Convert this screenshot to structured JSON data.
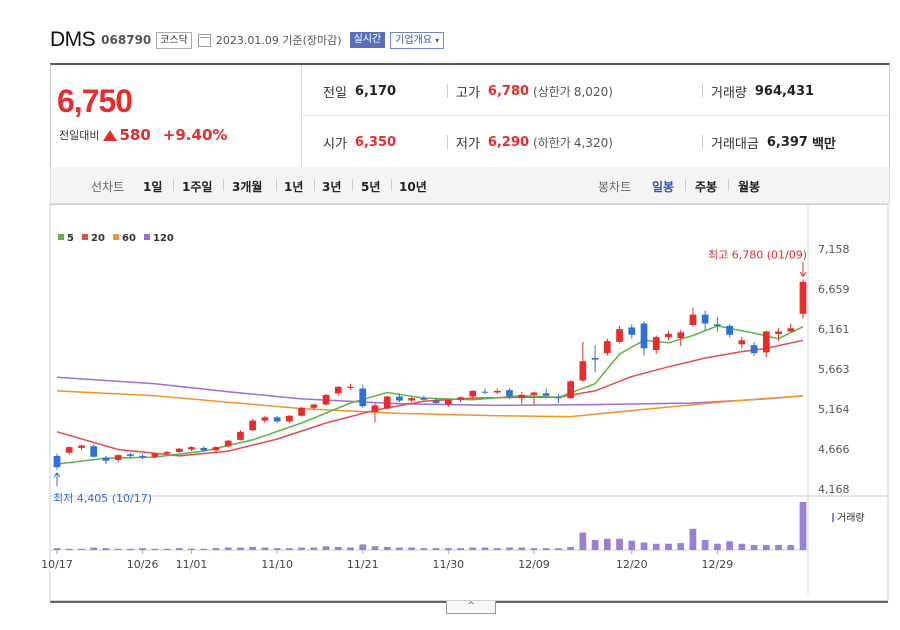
{
  "header": {
    "name": "DMS",
    "code": "068790",
    "market": "코스닥",
    "date": "2023.01.09 기준(장마감)",
    "realtime": "실시간",
    "company_info": "기업개요"
  },
  "quote": {
    "price": "6,750",
    "change_label": "전일대비",
    "change": "580",
    "change_pct": "+9.40%",
    "prev_label": "전일",
    "prev": "6,170",
    "open_label": "시가",
    "open": "6,350",
    "high_label": "고가",
    "high": "6,780",
    "upper_limit_label": "(상한가",
    "upper_limit": "8,020)",
    "low_label": "저가",
    "low": "6,290",
    "lower_limit_label": "(하한가",
    "lower_limit": "4,320)",
    "volume_label": "거래량",
    "volume": "964,431",
    "amount_label": "거래대금",
    "amount": "6,397",
    "amount_unit": "백만"
  },
  "tabs": {
    "line_label": "선차트",
    "line_periods": [
      "1일",
      "1주일",
      "3개월",
      "1년",
      "3년",
      "5년",
      "10년"
    ],
    "candle_label": "봉차트",
    "candle_periods": [
      "일봉",
      "주봉",
      "월봉"
    ]
  },
  "chart_data": {
    "type": "candlestick",
    "legend": [
      "5",
      "20",
      "60",
      "120"
    ],
    "ma_colors": {
      "5": "#59b646",
      "20": "#e84a4a",
      "60": "#f2922a",
      "120": "#9b6fd2"
    },
    "up_color": "#e62c2c",
    "down_color": "#2f6fd6",
    "y_ticks": [
      7158,
      6659,
      6161,
      5663,
      5164,
      4666,
      4168
    ],
    "y_tick_labels": [
      "7,158",
      "6,659",
      "6,161",
      "5,663",
      "5,164",
      "4,666",
      "4,168"
    ],
    "ylim": [
      4168,
      7158
    ],
    "x_labels": [
      "10/17",
      "10/26",
      "11/01",
      "11/10",
      "11/21",
      "11/30",
      "12/09",
      "12/20",
      "12/29"
    ],
    "x_label_index": [
      0,
      7,
      11,
      18,
      25,
      32,
      39,
      47,
      54
    ],
    "high_annotation": "최고 6,780 (01/09)",
    "low_annotation": "최저 4,405 (10/17)",
    "volume_legend": "거래량",
    "candles": [
      [
        4580,
        4610,
        4405,
        4440
      ],
      [
        4620,
        4700,
        4600,
        4690
      ],
      [
        4680,
        4720,
        4650,
        4710
      ],
      [
        4700,
        4720,
        4560,
        4570
      ],
      [
        4560,
        4580,
        4480,
        4520
      ],
      [
        4530,
        4600,
        4500,
        4590
      ],
      [
        4600,
        4620,
        4560,
        4580
      ],
      [
        4580,
        4600,
        4540,
        4570
      ],
      [
        4570,
        4620,
        4550,
        4610
      ],
      [
        4610,
        4640,
        4590,
        4630
      ],
      [
        4630,
        4680,
        4620,
        4670
      ],
      [
        4660,
        4700,
        4640,
        4690
      ],
      [
        4680,
        4700,
        4640,
        4650
      ],
      [
        4650,
        4700,
        4620,
        4690
      ],
      [
        4700,
        4780,
        4690,
        4770
      ],
      [
        4780,
        4900,
        4770,
        4880
      ],
      [
        4900,
        5040,
        4890,
        5020
      ],
      [
        5020,
        5080,
        4990,
        5060
      ],
      [
        5060,
        5080,
        4990,
        5010
      ],
      [
        5010,
        5090,
        4990,
        5080
      ],
      [
        5080,
        5190,
        5070,
        5180
      ],
      [
        5180,
        5230,
        5150,
        5220
      ],
      [
        5220,
        5350,
        5210,
        5340
      ],
      [
        5360,
        5450,
        5330,
        5440
      ],
      [
        5430,
        5480,
        5400,
        5440
      ],
      [
        5420,
        5460,
        5180,
        5200
      ],
      [
        5130,
        5240,
        5000,
        5210
      ],
      [
        5170,
        5330,
        5160,
        5320
      ],
      [
        5320,
        5360,
        5250,
        5270
      ],
      [
        5270,
        5320,
        5250,
        5300
      ],
      [
        5300,
        5330,
        5270,
        5280
      ],
      [
        5270,
        5300,
        5230,
        5240
      ],
      [
        5220,
        5290,
        5190,
        5280
      ],
      [
        5280,
        5320,
        5250,
        5310
      ],
      [
        5320,
        5400,
        5300,
        5390
      ],
      [
        5380,
        5420,
        5350,
        5370
      ],
      [
        5370,
        5420,
        5350,
        5390
      ],
      [
        5400,
        5420,
        5290,
        5320
      ],
      [
        5300,
        5380,
        5230,
        5340
      ],
      [
        5340,
        5380,
        5220,
        5370
      ],
      [
        5360,
        5420,
        5300,
        5330
      ],
      [
        5310,
        5350,
        5240,
        5300
      ],
      [
        5300,
        5520,
        5290,
        5510
      ],
      [
        5520,
        6000,
        5500,
        5760
      ],
      [
        5800,
        5960,
        5620,
        5780
      ],
      [
        5860,
        6040,
        5830,
        6010
      ],
      [
        6000,
        6200,
        5980,
        6160
      ],
      [
        6180,
        6220,
        6040,
        6090
      ],
      [
        6230,
        6260,
        5830,
        5920
      ],
      [
        5900,
        6080,
        5850,
        6060
      ],
      [
        6060,
        6140,
        6020,
        6100
      ],
      [
        6050,
        6150,
        5950,
        6120
      ],
      [
        6210,
        6430,
        6190,
        6340
      ],
      [
        6340,
        6390,
        6140,
        6230
      ],
      [
        6220,
        6310,
        6130,
        6200
      ],
      [
        6200,
        6220,
        6060,
        6090
      ],
      [
        5970,
        6060,
        5920,
        6020
      ],
      [
        5960,
        6000,
        5830,
        5860
      ],
      [
        5870,
        6140,
        5810,
        6130
      ],
      [
        6100,
        6170,
        6010,
        6130
      ],
      [
        6130,
        6230,
        6120,
        6170
      ],
      [
        6350,
        6780,
        6290,
        6750
      ]
    ],
    "volume": [
      3,
      2,
      2,
      4,
      3,
      2,
      2,
      3,
      2,
      2,
      3,
      2,
      2,
      3,
      4,
      4,
      5,
      4,
      3,
      3,
      4,
      4,
      6,
      5,
      4,
      9,
      6,
      5,
      4,
      4,
      3,
      3,
      3,
      3,
      4,
      4,
      3,
      4,
      4,
      3,
      3,
      3,
      5,
      28,
      16,
      18,
      18,
      15,
      12,
      10,
      10,
      11,
      34,
      16,
      10,
      14,
      10,
      8,
      8,
      8,
      8,
      77
    ],
    "ma5": [
      [
        0,
        4480
      ],
      [
        4,
        4550
      ],
      [
        8,
        4565
      ],
      [
        12,
        4640
      ],
      [
        16,
        4780
      ],
      [
        20,
        4990
      ],
      [
        24,
        5240
      ],
      [
        27,
        5370
      ],
      [
        30,
        5300
      ],
      [
        34,
        5280
      ],
      [
        38,
        5330
      ],
      [
        41,
        5310
      ],
      [
        44,
        5480
      ],
      [
        46,
        5850
      ],
      [
        48,
        6020
      ],
      [
        50,
        5990
      ],
      [
        52,
        6080
      ],
      [
        54,
        6200
      ],
      [
        57,
        6110
      ],
      [
        59,
        6040
      ],
      [
        61,
        6190
      ]
    ],
    "ma20": [
      [
        0,
        4880
      ],
      [
        5,
        4660
      ],
      [
        10,
        4580
      ],
      [
        14,
        4640
      ],
      [
        18,
        4790
      ],
      [
        22,
        4990
      ],
      [
        26,
        5150
      ],
      [
        30,
        5260
      ],
      [
        34,
        5300
      ],
      [
        38,
        5310
      ],
      [
        41,
        5310
      ],
      [
        44,
        5390
      ],
      [
        47,
        5570
      ],
      [
        50,
        5690
      ],
      [
        53,
        5800
      ],
      [
        56,
        5880
      ],
      [
        58,
        5920
      ],
      [
        61,
        6020
      ]
    ],
    "ma60": [
      [
        0,
        5390
      ],
      [
        8,
        5330
      ],
      [
        14,
        5250
      ],
      [
        20,
        5170
      ],
      [
        28,
        5110
      ],
      [
        36,
        5080
      ],
      [
        42,
        5070
      ],
      [
        48,
        5160
      ],
      [
        55,
        5260
      ],
      [
        61,
        5330
      ]
    ],
    "ma120": [
      [
        0,
        5560
      ],
      [
        8,
        5480
      ],
      [
        14,
        5380
      ],
      [
        20,
        5290
      ],
      [
        28,
        5230
      ],
      [
        36,
        5210
      ],
      [
        44,
        5220
      ],
      [
        52,
        5240
      ],
      [
        58,
        5290
      ],
      [
        61,
        5330
      ]
    ]
  }
}
